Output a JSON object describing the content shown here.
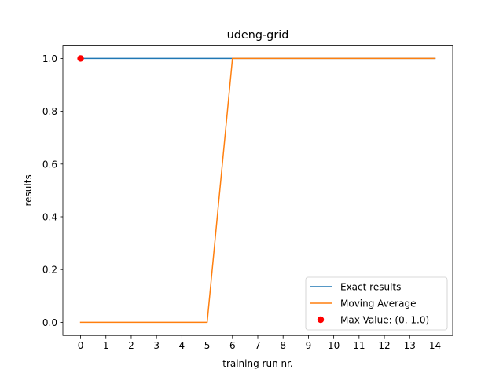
{
  "chart_data": {
    "type": "line",
    "title": "udeng-grid",
    "xlabel": "training run nr.",
    "ylabel": "results",
    "x": [
      0,
      1,
      2,
      3,
      4,
      5,
      6,
      7,
      8,
      9,
      10,
      11,
      12,
      13,
      14
    ],
    "xticks": [
      "0",
      "1",
      "2",
      "3",
      "4",
      "5",
      "6",
      "7",
      "8",
      "9",
      "10",
      "11",
      "12",
      "13",
      "14"
    ],
    "yticks": [
      "0.0",
      "0.2",
      "0.4",
      "0.6",
      "0.8",
      "1.0"
    ],
    "xlim": [
      -0.7,
      14.7
    ],
    "ylim": [
      -0.05,
      1.05
    ],
    "grid": false,
    "legend_position": "lower-right",
    "series": [
      {
        "name": "Exact results",
        "color": "#1f77b4",
        "values": [
          1,
          1,
          1,
          1,
          1,
          1,
          1,
          1,
          1,
          1,
          1,
          1,
          1,
          1,
          1
        ]
      },
      {
        "name": "Moving Average",
        "color": "#ff7f0e",
        "values": [
          0,
          0,
          0,
          0,
          0,
          0,
          1,
          1,
          1,
          1,
          1,
          1,
          1,
          1,
          1
        ]
      }
    ],
    "max_point": {
      "name": "Max Value: (0, 1.0)",
      "x": 0,
      "y": 1.0,
      "color": "#ff0000"
    }
  }
}
